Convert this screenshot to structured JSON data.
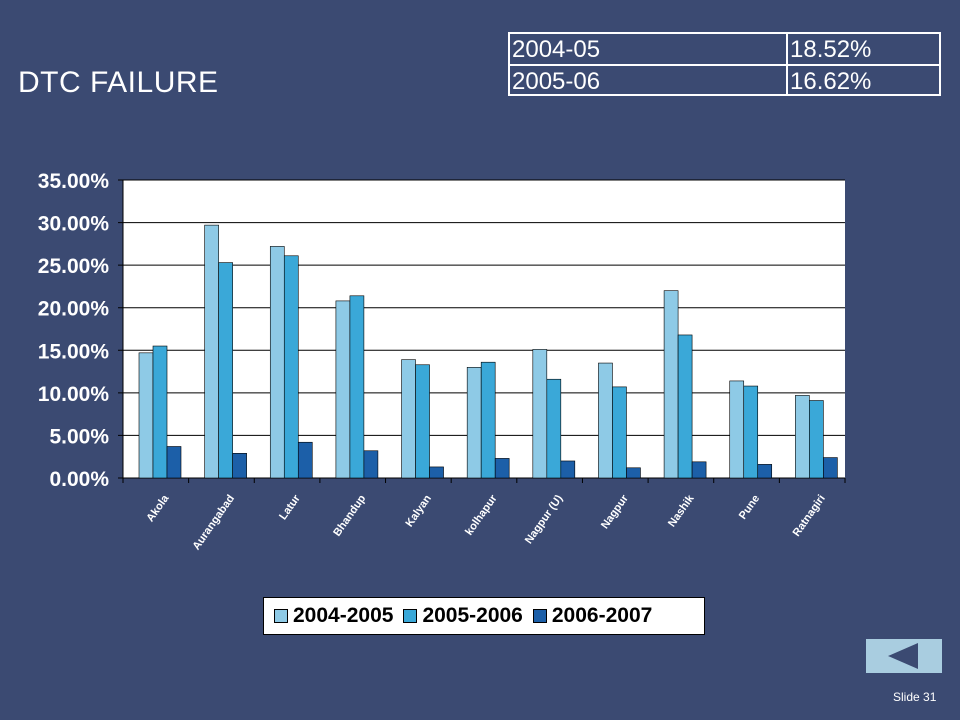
{
  "slide": {
    "title": "DTC FAILURE",
    "slide_number": "Slide 31"
  },
  "summary_table": {
    "rows": [
      {
        "year": "2004-05",
        "value": "18.52%"
      },
      {
        "year": "2005-06",
        "value": "16.62%"
      }
    ]
  },
  "nav": {
    "back_icon": "triangle-left-icon"
  },
  "colors": {
    "background": "#3b4a72",
    "series_2004_2005": "#8ecae6",
    "series_2005_2006": "#3aa8d8",
    "series_2006_2007": "#1c5fa8",
    "nav_button": "#a9cde0"
  },
  "chart_data": {
    "type": "bar",
    "categories": [
      "Akola",
      "Aurangabad",
      "Latur",
      "Bhandup",
      "Kalyan",
      "kolhapur",
      "Nagpur (U)",
      "Nagpur",
      "Nashik",
      "Pune",
      "Ratnagiri"
    ],
    "series": [
      {
        "name": "2004-2005",
        "values": [
          14.7,
          29.7,
          27.2,
          20.8,
          13.9,
          13.0,
          15.1,
          13.5,
          22.0,
          11.4,
          9.7
        ]
      },
      {
        "name": "2005-2006",
        "values": [
          15.5,
          25.3,
          26.1,
          21.4,
          13.3,
          13.6,
          11.6,
          10.7,
          16.8,
          10.8,
          9.1
        ]
      },
      {
        "name": "2006-2007",
        "values": [
          3.7,
          2.9,
          4.2,
          3.2,
          1.3,
          2.3,
          2.0,
          1.2,
          1.9,
          1.6,
          2.4
        ]
      }
    ],
    "ylim": [
      0,
      35
    ],
    "yticks": [
      "0.00%",
      "5.00%",
      "10.00%",
      "15.00%",
      "20.00%",
      "25.00%",
      "30.00%",
      "35.00%"
    ],
    "grid": true,
    "legend": "bottom"
  }
}
